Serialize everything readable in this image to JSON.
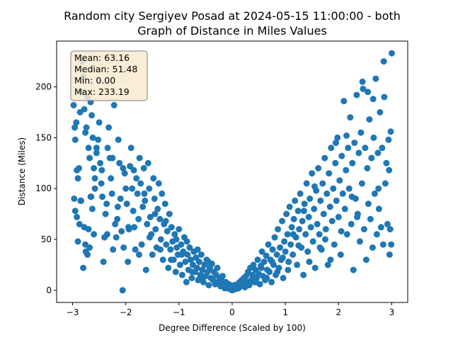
{
  "chart_data": {
    "type": "scatter",
    "title_line1": "Random city Sergiyev Posad at 2024-05-15 11:00:00  - both",
    "title_line2": "Graph of Distance in Miles Values",
    "xlabel": "Degree Difference (Scaled by 100)",
    "ylabel": "Distance (Miles)",
    "xlim": [
      -3.3,
      3.3
    ],
    "ylim": [
      -12,
      245
    ],
    "xticks": [
      -3,
      -2,
      -1,
      0,
      1,
      2,
      3
    ],
    "xtick_labels": [
      "−3",
      "−2",
      "−1",
      "0",
      "1",
      "2",
      "3"
    ],
    "yticks": [
      0,
      50,
      100,
      150,
      200
    ],
    "ytick_labels": [
      "0",
      "50",
      "100",
      "150",
      "200"
    ],
    "marker_color": "#1f77b4",
    "grid": false,
    "legend": "none",
    "stats": {
      "mean": "Mean: 63.16",
      "median": "Median: 51.48",
      "min": "Min: 0.00",
      "max": "Max: 233.19",
      "placement": "top-left",
      "box_face": "#f8ead0",
      "box_edge": "#808080"
    },
    "points": [
      [
        -2.98,
        182
      ],
      [
        -2.95,
        148
      ],
      [
        -2.93,
        165
      ],
      [
        -2.9,
        110
      ],
      [
        -2.88,
        120
      ],
      [
        -2.86,
        175
      ],
      [
        -2.84,
        195
      ],
      [
        -2.82,
        225
      ],
      [
        -2.8,
        210
      ],
      [
        -2.78,
        178
      ],
      [
        -2.76,
        155
      ],
      [
        -2.74,
        160
      ],
      [
        -2.72,
        190
      ],
      [
        -2.7,
        140
      ],
      [
        -2.68,
        130
      ],
      [
        -2.66,
        185
      ],
      [
        -2.64,
        172
      ],
      [
        -2.62,
        150
      ],
      [
        -2.6,
        120
      ],
      [
        -2.58,
        100
      ],
      [
        -2.97,
        90
      ],
      [
        -2.95,
        78
      ],
      [
        -2.92,
        72
      ],
      [
        -2.9,
        48
      ],
      [
        -2.87,
        65
      ],
      [
        -2.84,
        88
      ],
      [
        -2.8,
        22
      ],
      [
        -2.78,
        62
      ],
      [
        -2.76,
        45
      ],
      [
        -2.72,
        35
      ],
      [
        -2.7,
        60
      ],
      [
        -2.68,
        42
      ],
      [
        -2.66,
        92
      ],
      [
        -2.63,
        80
      ],
      [
        -2.6,
        55
      ],
      [
        -2.58,
        110
      ],
      [
        -2.55,
        135
      ],
      [
        -2.52,
        148
      ],
      [
        -2.5,
        165
      ],
      [
        -2.48,
        125
      ],
      [
        -2.46,
        105
      ],
      [
        -2.44,
        92
      ],
      [
        -2.42,
        28
      ],
      [
        -2.4,
        52
      ],
      [
        -2.38,
        75
      ],
      [
        -2.36,
        85
      ],
      [
        -2.34,
        140
      ],
      [
        -2.32,
        160
      ],
      [
        -2.3,
        130
      ],
      [
        -2.28,
        110
      ],
      [
        -2.26,
        95
      ],
      [
        -2.24,
        40
      ],
      [
        -2.22,
        182
      ],
      [
        -2.2,
        65
      ],
      [
        -2.18,
        52
      ],
      [
        -2.16,
        70
      ],
      [
        -2.14,
        148
      ],
      [
        -2.12,
        125
      ],
      [
        -2.1,
        90
      ],
      [
        -2.08,
        58
      ],
      [
        -2.06,
        0
      ],
      [
        -2.04,
        42
      ],
      [
        -2.02,
        115
      ],
      [
        -2.0,
        100
      ],
      [
        -1.98,
        85
      ],
      [
        -1.96,
        28
      ],
      [
        -1.94,
        60
      ],
      [
        -1.92,
        122
      ],
      [
        -1.9,
        140
      ],
      [
        -1.88,
        100
      ],
      [
        -1.86,
        78
      ],
      [
        -1.84,
        62
      ],
      [
        -1.82,
        40
      ],
      [
        -1.8,
        110
      ],
      [
        -1.78,
        95
      ],
      [
        -1.76,
        70
      ],
      [
        -1.74,
        130
      ],
      [
        -1.72,
        105
      ],
      [
        -1.7,
        45
      ],
      [
        -1.68,
        82
      ],
      [
        -1.66,
        120
      ],
      [
        -1.64,
        88
      ],
      [
        -1.62,
        20
      ],
      [
        -1.6,
        65
      ],
      [
        -1.58,
        125
      ],
      [
        -1.56,
        100
      ],
      [
        -1.54,
        72
      ],
      [
        -1.52,
        55
      ],
      [
        -1.5,
        35
      ],
      [
        -1.48,
        110
      ],
      [
        -1.46,
        90
      ],
      [
        -1.44,
        60
      ],
      [
        -1.42,
        42
      ],
      [
        -1.4,
        80
      ],
      [
        -1.38,
        105
      ],
      [
        -1.36,
        70
      ],
      [
        -1.34,
        50
      ],
      [
        -1.32,
        95
      ],
      [
        -1.3,
        30
      ],
      [
        -1.28,
        65
      ],
      [
        -1.26,
        85
      ],
      [
        -1.24,
        45
      ],
      [
        -1.22,
        58
      ],
      [
        -1.2,
        22
      ],
      [
        -1.18,
        75
      ],
      [
        -1.16,
        40
      ],
      [
        -1.14,
        62
      ],
      [
        -1.12,
        48
      ],
      [
        -1.1,
        30
      ],
      [
        -1.08,
        55
      ],
      [
        -1.06,
        18
      ],
      [
        -1.04,
        42
      ],
      [
        -1.02,
        35
      ],
      [
        -1.0,
        60
      ],
      [
        -0.98,
        25
      ],
      [
        -0.96,
        45
      ],
      [
        -0.94,
        15
      ],
      [
        -0.92,
        38
      ],
      [
        -0.9,
        52
      ],
      [
        -0.88,
        28
      ],
      [
        -0.86,
        8
      ],
      [
        -0.84,
        35
      ],
      [
        -0.82,
        20
      ],
      [
        -0.8,
        42
      ],
      [
        -0.78,
        30
      ],
      [
        -0.76,
        12
      ],
      [
        -0.74,
        25
      ],
      [
        -0.72,
        38
      ],
      [
        -0.7,
        18
      ],
      [
        -0.68,
        32
      ],
      [
        -0.66,
        22
      ],
      [
        -0.64,
        10
      ],
      [
        -0.62,
        28
      ],
      [
        -0.6,
        15
      ],
      [
        -0.58,
        35
      ],
      [
        -0.56,
        20
      ],
      [
        -0.54,
        8
      ],
      [
        -0.52,
        25
      ],
      [
        -0.5,
        14
      ],
      [
        -0.48,
        30
      ],
      [
        -0.46,
        18
      ],
      [
        -0.44,
        5
      ],
      [
        -0.42,
        22
      ],
      [
        -0.4,
        12
      ],
      [
        -0.38,
        26
      ],
      [
        -0.36,
        10
      ],
      [
        -0.34,
        18
      ],
      [
        -0.32,
        6
      ],
      [
        -0.3,
        15
      ],
      [
        -0.28,
        22
      ],
      [
        -0.26,
        8
      ],
      [
        -0.24,
        12
      ],
      [
        -0.22,
        4
      ],
      [
        -0.2,
        10
      ],
      [
        -0.18,
        14
      ],
      [
        -0.16,
        6
      ],
      [
        -0.14,
        2
      ],
      [
        -0.12,
        8
      ],
      [
        -0.1,
        4
      ],
      [
        -0.08,
        2
      ],
      [
        -0.06,
        6
      ],
      [
        -0.04,
        1
      ],
      [
        -0.02,
        3
      ],
      [
        0.0,
        0
      ],
      [
        0.02,
        2
      ],
      [
        0.04,
        5
      ],
      [
        0.06,
        1
      ],
      [
        0.08,
        3
      ],
      [
        0.1,
        6
      ],
      [
        0.12,
        2
      ],
      [
        0.14,
        8
      ],
      [
        0.16,
        4
      ],
      [
        0.18,
        10
      ],
      [
        0.2,
        6
      ],
      [
        0.22,
        12
      ],
      [
        0.24,
        3
      ],
      [
        0.26,
        14
      ],
      [
        0.28,
        8
      ],
      [
        0.3,
        18
      ],
      [
        0.32,
        5
      ],
      [
        0.34,
        22
      ],
      [
        0.36,
        10
      ],
      [
        0.38,
        15
      ],
      [
        0.4,
        25
      ],
      [
        0.42,
        8
      ],
      [
        0.44,
        20
      ],
      [
        0.46,
        12
      ],
      [
        0.48,
        30
      ],
      [
        0.5,
        16
      ],
      [
        0.52,
        6
      ],
      [
        0.54,
        24
      ],
      [
        0.56,
        38
      ],
      [
        0.58,
        14
      ],
      [
        0.6,
        28
      ],
      [
        0.62,
        10
      ],
      [
        0.64,
        34
      ],
      [
        0.66,
        20
      ],
      [
        0.68,
        45
      ],
      [
        0.7,
        18
      ],
      [
        0.72,
        30
      ],
      [
        0.74,
        8
      ],
      [
        0.76,
        40
      ],
      [
        0.78,
        25
      ],
      [
        0.8,
        52
      ],
      [
        0.82,
        15
      ],
      [
        0.84,
        35
      ],
      [
        0.86,
        60
      ],
      [
        0.88,
        22
      ],
      [
        0.9,
        42
      ],
      [
        0.92,
        30
      ],
      [
        0.94,
        68
      ],
      [
        0.96,
        12
      ],
      [
        0.98,
        48
      ],
      [
        1.0,
        38
      ],
      [
        1.02,
        75
      ],
      [
        1.04,
        55
      ],
      [
        1.06,
        28
      ],
      [
        1.08,
        82
      ],
      [
        1.1,
        45
      ],
      [
        1.12,
        62
      ],
      [
        1.14,
        35
      ],
      [
        1.16,
        70
      ],
      [
        1.18,
        88
      ],
      [
        1.2,
        52
      ],
      [
        1.22,
        25
      ],
      [
        1.24,
        78
      ],
      [
        1.26,
        60
      ],
      [
        1.28,
        95
      ],
      [
        1.3,
        42
      ],
      [
        1.32,
        68
      ],
      [
        1.34,
        15
      ],
      [
        1.36,
        85
      ],
      [
        1.38,
        55
      ],
      [
        1.4,
        105
      ],
      [
        1.42,
        38
      ],
      [
        1.44,
        72
      ],
      [
        1.46,
        90
      ],
      [
        1.48,
        62
      ],
      [
        1.5,
        115
      ],
      [
        1.52,
        48
      ],
      [
        1.54,
        80
      ],
      [
        1.56,
        22
      ],
      [
        1.58,
        98
      ],
      [
        1.6,
        65
      ],
      [
        1.62,
        120
      ],
      [
        1.64,
        55
      ],
      [
        1.66,
        88
      ],
      [
        1.68,
        40
      ],
      [
        1.7,
        105
      ],
      [
        1.72,
        75
      ],
      [
        1.74,
        130
      ],
      [
        1.76,
        60
      ],
      [
        1.78,
        95
      ],
      [
        1.8,
        25
      ],
      [
        1.82,
        115
      ],
      [
        1.84,
        82
      ],
      [
        1.86,
        140
      ],
      [
        1.88,
        68
      ],
      [
        1.9,
        100
      ],
      [
        1.92,
        45
      ],
      [
        1.94,
        125
      ],
      [
        1.96,
        88
      ],
      [
        1.98,
        150
      ],
      [
        2.0,
        72
      ],
      [
        2.02,
        108
      ],
      [
        2.04,
        35
      ],
      [
        2.06,
        132
      ],
      [
        2.08,
        95
      ],
      [
        2.1,
        186
      ],
      [
        2.12,
        80
      ],
      [
        2.14,
        118
      ],
      [
        2.16,
        55
      ],
      [
        2.18,
        140
      ],
      [
        2.2,
        100
      ],
      [
        2.22,
        170
      ],
      [
        2.24,
        65
      ],
      [
        2.26,
        125
      ],
      [
        2.28,
        20
      ],
      [
        2.3,
        145
      ],
      [
        2.32,
        90
      ],
      [
        2.34,
        192
      ],
      [
        2.36,
        75
      ],
      [
        2.38,
        135
      ],
      [
        2.4,
        48
      ],
      [
        2.42,
        155
      ],
      [
        2.44,
        105
      ],
      [
        2.46,
        198
      ],
      [
        2.48,
        60
      ],
      [
        2.5,
        140
      ],
      [
        2.52,
        30
      ],
      [
        2.54,
        120
      ],
      [
        2.56,
        85
      ],
      [
        2.58,
        168
      ],
      [
        2.6,
        70
      ],
      [
        2.62,
        130
      ],
      [
        2.64,
        42
      ],
      [
        2.66,
        150
      ],
      [
        2.68,
        95
      ],
      [
        2.7,
        208
      ],
      [
        2.72,
        55
      ],
      [
        2.74,
        135
      ],
      [
        2.76,
        80
      ],
      [
        2.78,
        175
      ],
      [
        2.8,
        62
      ],
      [
        2.82,
        140
      ],
      [
        2.84,
        45
      ],
      [
        2.86,
        190
      ],
      [
        2.88,
        105
      ],
      [
        2.9,
        125
      ],
      [
        2.92,
        65
      ],
      [
        2.94,
        148
      ],
      [
        2.96,
        35
      ],
      [
        2.98,
        156
      ],
      [
        3.0,
        233
      ],
      [
        2.99,
        45
      ],
      [
        2.97,
        60
      ],
      [
        2.95,
        118
      ],
      [
        2.85,
        225
      ],
      [
        2.75,
        100
      ],
      [
        2.65,
        188
      ],
      [
        2.55,
        195
      ],
      [
        2.45,
        205
      ],
      [
        2.35,
        72
      ],
      [
        2.25,
        92
      ],
      [
        2.15,
        152
      ],
      [
        2.05,
        58
      ],
      [
        1.95,
        145
      ],
      [
        1.85,
        30
      ],
      [
        1.75,
        50
      ],
      [
        1.65,
        42
      ],
      [
        1.55,
        102
      ],
      [
        1.45,
        28
      ],
      [
        1.35,
        78
      ],
      [
        1.25,
        44
      ],
      [
        1.15,
        55
      ],
      [
        1.05,
        20
      ],
      [
        0.95,
        32
      ],
      [
        0.85,
        18
      ],
      [
        0.75,
        28
      ],
      [
        0.65,
        12
      ],
      [
        0.55,
        22
      ],
      [
        0.45,
        8
      ],
      [
        -0.45,
        28
      ],
      [
        -0.55,
        12
      ],
      [
        -0.65,
        40
      ],
      [
        -0.75,
        18
      ],
      [
        -0.85,
        48
      ],
      [
        -0.95,
        35
      ],
      [
        -1.05,
        50
      ],
      [
        -1.15,
        30
      ],
      [
        -1.25,
        68
      ],
      [
        -1.35,
        40
      ],
      [
        -1.45,
        75
      ],
      [
        -1.55,
        52
      ],
      [
        -1.65,
        95
      ],
      [
        -1.75,
        35
      ],
      [
        -1.85,
        118
      ],
      [
        -1.95,
        62
      ],
      [
        -2.05,
        120
      ],
      [
        -2.15,
        82
      ],
      [
        -2.25,
        130
      ],
      [
        -2.35,
        55
      ],
      [
        -2.45,
        118
      ],
      [
        -2.55,
        140
      ],
      [
        -2.65,
        92
      ],
      [
        -2.75,
        38
      ],
      [
        -2.85,
        88
      ],
      [
        -2.92,
        118
      ],
      [
        -2.96,
        160
      ]
    ]
  }
}
